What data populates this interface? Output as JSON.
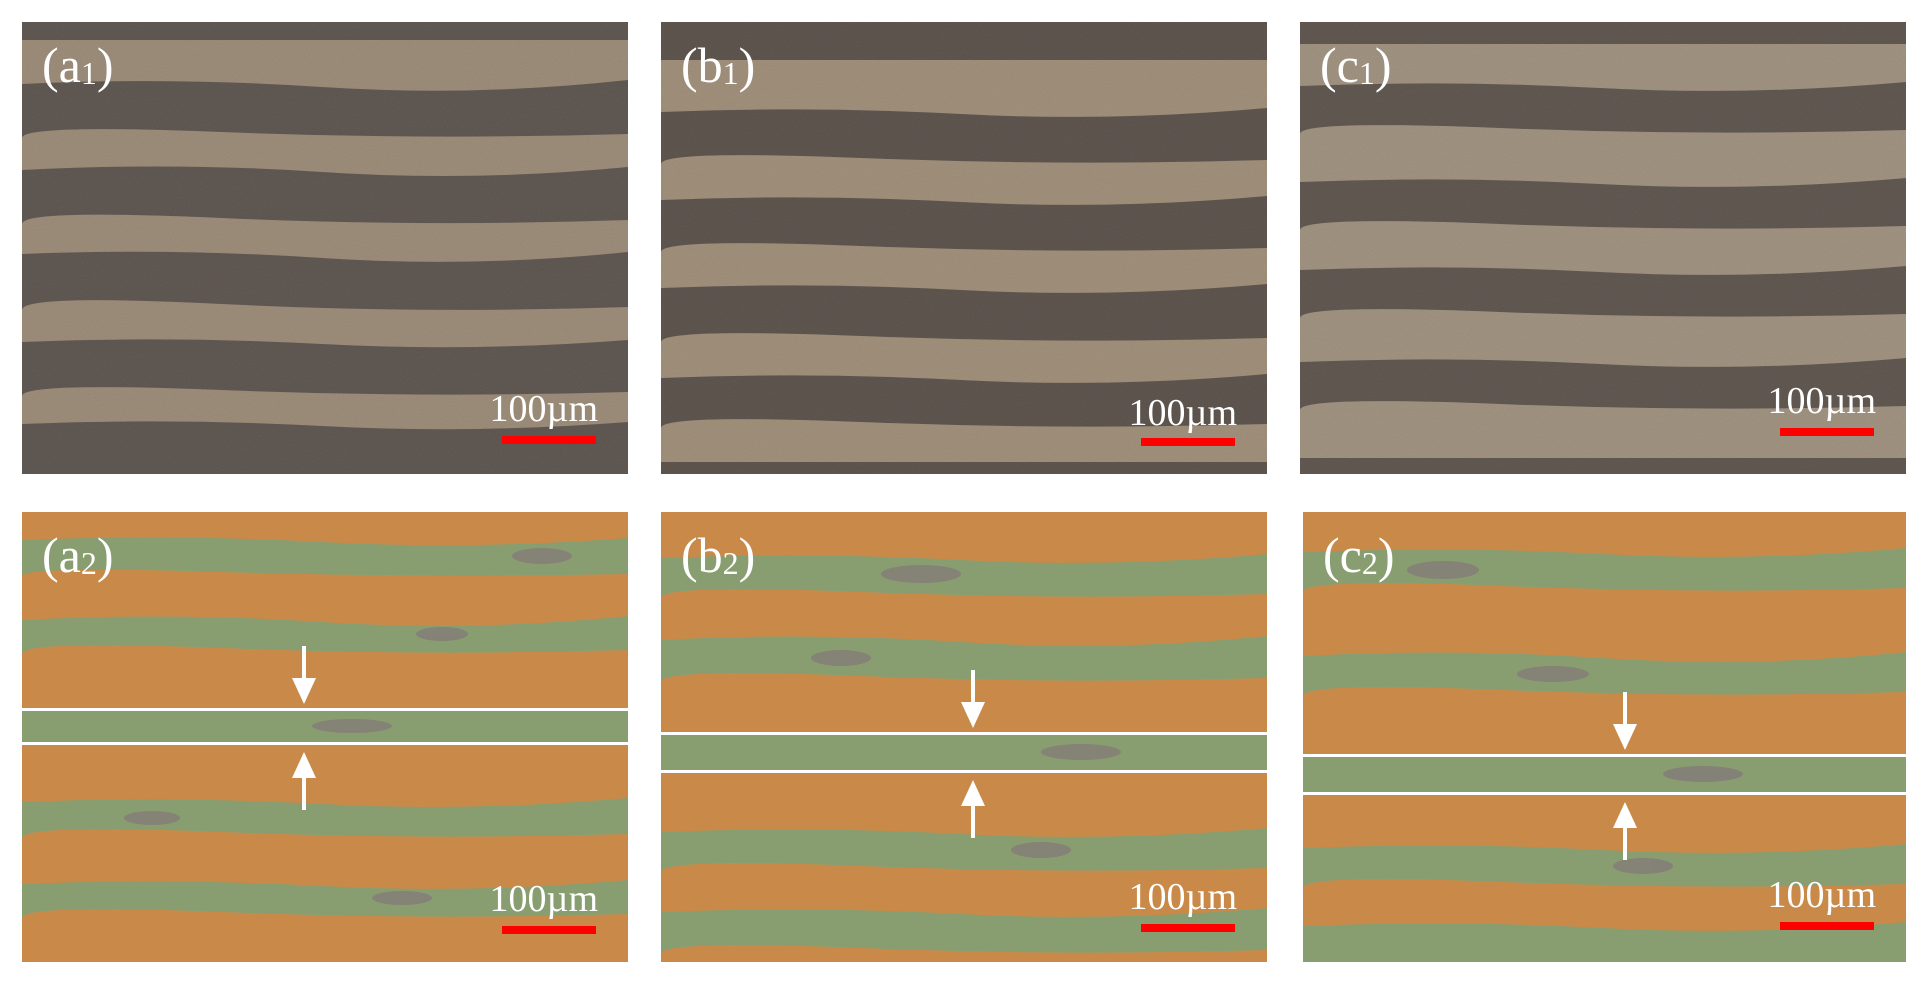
{
  "panels": {
    "a1": {
      "letter": "(a",
      "sub": "1",
      "close": ")",
      "scale": "100µm"
    },
    "b1": {
      "letter": "(b",
      "sub": "1",
      "close": ")",
      "scale": "100µm"
    },
    "c1": {
      "letter": "(c",
      "sub": "1",
      "close": ")",
      "scale": "100µm"
    },
    "a2": {
      "letter": "(a",
      "sub": "2",
      "close": ")",
      "scale": "100µm"
    },
    "b2": {
      "letter": "(b",
      "sub": "2",
      "close": ")",
      "scale": "100µm"
    },
    "c2": {
      "letter": "(c",
      "sub": "2",
      "close": ")",
      "scale": "100µm"
    }
  },
  "colors": {
    "micro_light": "#c9b9a4",
    "micro_dark": "#2a2d35",
    "map_base": "#c98a4a",
    "map_band": "#33b5a8",
    "map_band_dark": "#2d63b8",
    "scale_bar": "#ff0000",
    "label": "#ffffff"
  }
}
